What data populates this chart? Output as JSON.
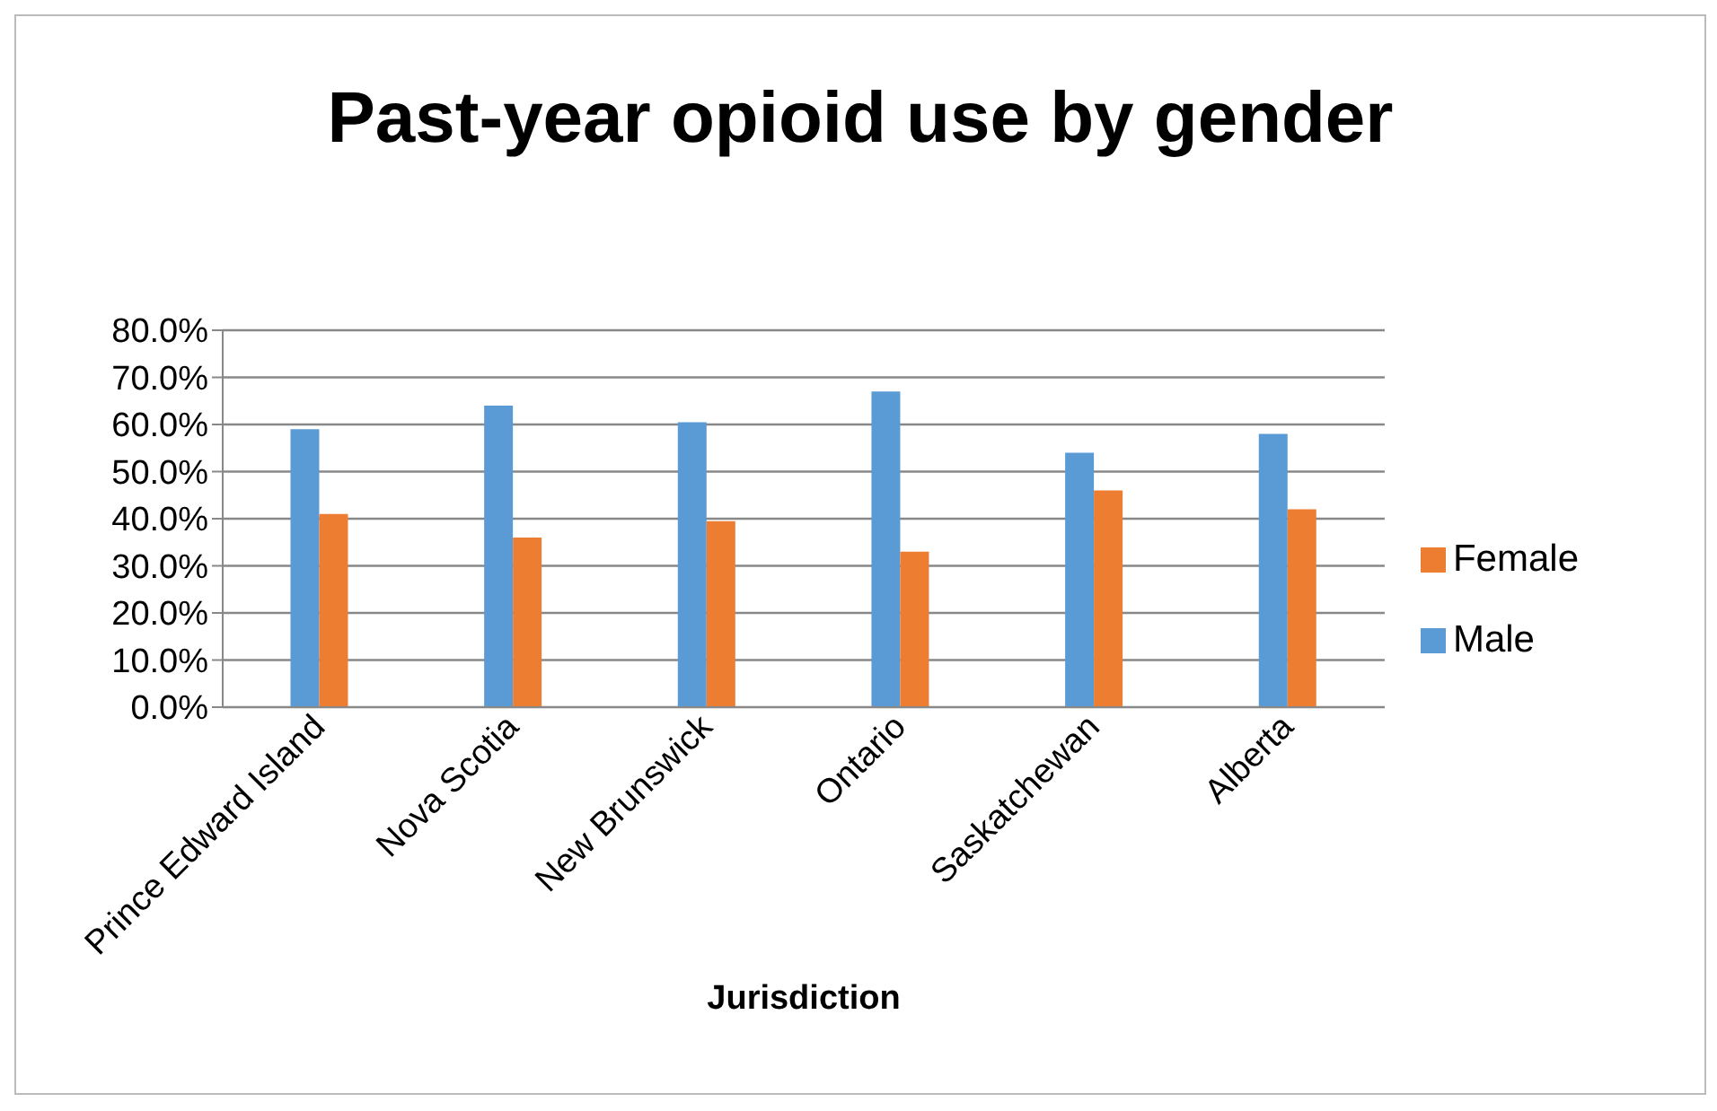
{
  "chart_data": {
    "type": "bar",
    "title": "Past-year opioid use by gender",
    "xlabel": "Jurisdiction",
    "categories": [
      "Prince Edward Island",
      "Nova Scotia",
      "New Brunswick",
      "Ontario",
      "Saskatchewan",
      "Alberta"
    ],
    "series": [
      {
        "name": "Male",
        "color": "#5b9bd5",
        "values": [
          59,
          64,
          60.5,
          67,
          54,
          58
        ]
      },
      {
        "name": "Female",
        "color": "#ed7d31",
        "values": [
          41,
          36,
          39.5,
          33,
          46,
          42
        ]
      }
    ],
    "ylim": [
      0,
      80
    ],
    "yticks": [
      {
        "value": 0,
        "label": "0.0%"
      },
      {
        "value": 10,
        "label": "10.0%"
      },
      {
        "value": 20,
        "label": "20.0%"
      },
      {
        "value": 30,
        "label": "30.0%"
      },
      {
        "value": 40,
        "label": "40.0%"
      },
      {
        "value": 50,
        "label": "50.0%"
      },
      {
        "value": 60,
        "label": "60.0%"
      },
      {
        "value": 70,
        "label": "70.0%"
      },
      {
        "value": 80,
        "label": "80.0%"
      }
    ],
    "grid": "y",
    "legend": "right"
  }
}
